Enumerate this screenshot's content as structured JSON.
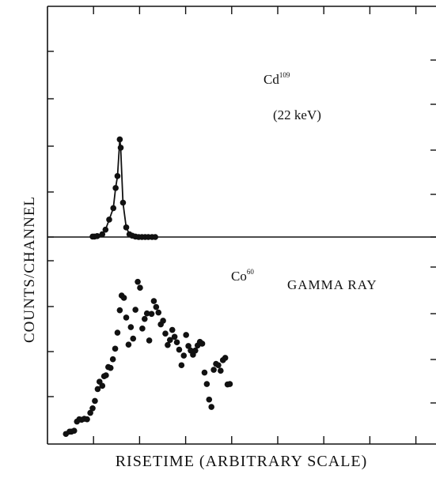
{
  "chart_data": {
    "type": "scatter",
    "title": "",
    "xlabel": "RISETIME (ARBITRARY SCALE)",
    "ylabel": "COUNTS/CHANNEL",
    "grid": false,
    "panels": [
      {
        "name": "Cd109",
        "annotation": {
          "isotope": "Cd",
          "mass": "109",
          "energy": "(22 keV)"
        },
        "has_fit_curve": true,
        "points": [
          {
            "x": 0.98,
            "y": 0.01
          },
          {
            "x": 1.02,
            "y": 0.01
          },
          {
            "x": 1.08,
            "y": 0.02
          },
          {
            "x": 1.19,
            "y": 0.06
          },
          {
            "x": 1.26,
            "y": 0.16
          },
          {
            "x": 1.34,
            "y": 0.38
          },
          {
            "x": 1.43,
            "y": 0.63
          },
          {
            "x": 1.48,
            "y": 1.07
          },
          {
            "x": 1.52,
            "y": 1.33
          },
          {
            "x": 1.57,
            "y": 2.13
          },
          {
            "x": 1.59,
            "y": 1.95
          },
          {
            "x": 1.64,
            "y": 0.75
          },
          {
            "x": 1.71,
            "y": 0.21
          },
          {
            "x": 1.78,
            "y": 0.06
          },
          {
            "x": 1.84,
            "y": 0.03
          },
          {
            "x": 1.91,
            "y": 0.01
          },
          {
            "x": 1.98,
            "y": 0.0
          },
          {
            "x": 2.05,
            "y": 0.0
          },
          {
            "x": 2.12,
            "y": 0.0
          },
          {
            "x": 2.19,
            "y": 0.0
          },
          {
            "x": 2.27,
            "y": 0.0
          },
          {
            "x": 2.34,
            "y": 0.0
          }
        ]
      },
      {
        "name": "Co60 gamma ray",
        "annotation": {
          "isotope": "Co",
          "mass": "60",
          "text": "GAMMA RAY"
        },
        "has_fit_curve": false,
        "points": [
          {
            "x": 0.4,
            "y": 0.22
          },
          {
            "x": 0.48,
            "y": 0.27
          },
          {
            "x": 0.52,
            "y": 0.27
          },
          {
            "x": 0.58,
            "y": 0.29
          },
          {
            "x": 0.64,
            "y": 0.49
          },
          {
            "x": 0.69,
            "y": 0.54
          },
          {
            "x": 0.74,
            "y": 0.53
          },
          {
            "x": 0.8,
            "y": 0.55
          },
          {
            "x": 0.86,
            "y": 0.54
          },
          {
            "x": 0.93,
            "y": 0.68
          },
          {
            "x": 0.98,
            "y": 0.78
          },
          {
            "x": 1.03,
            "y": 0.94
          },
          {
            "x": 1.09,
            "y": 1.2
          },
          {
            "x": 1.13,
            "y": 1.36
          },
          {
            "x": 1.19,
            "y": 1.27
          },
          {
            "x": 1.23,
            "y": 1.48
          },
          {
            "x": 1.27,
            "y": 1.5
          },
          {
            "x": 1.32,
            "y": 1.68
          },
          {
            "x": 1.37,
            "y": 1.66
          },
          {
            "x": 1.42,
            "y": 1.85
          },
          {
            "x": 1.47,
            "y": 2.08
          },
          {
            "x": 1.52,
            "y": 2.43
          },
          {
            "x": 1.57,
            "y": 2.92
          },
          {
            "x": 1.61,
            "y": 3.24
          },
          {
            "x": 1.66,
            "y": 3.19
          },
          {
            "x": 1.71,
            "y": 2.76
          },
          {
            "x": 1.76,
            "y": 2.17
          },
          {
            "x": 1.81,
            "y": 2.55
          },
          {
            "x": 1.86,
            "y": 2.3
          },
          {
            "x": 1.91,
            "y": 2.93
          },
          {
            "x": 1.96,
            "y": 3.54
          },
          {
            "x": 2.01,
            "y": 3.41
          },
          {
            "x": 2.06,
            "y": 2.52
          },
          {
            "x": 2.11,
            "y": 2.73
          },
          {
            "x": 2.16,
            "y": 2.85
          },
          {
            "x": 2.21,
            "y": 2.26
          },
          {
            "x": 2.26,
            "y": 2.84
          },
          {
            "x": 2.31,
            "y": 3.12
          },
          {
            "x": 2.36,
            "y": 2.99
          },
          {
            "x": 2.41,
            "y": 2.87
          },
          {
            "x": 2.46,
            "y": 2.61
          },
          {
            "x": 2.51,
            "y": 2.69
          },
          {
            "x": 2.56,
            "y": 2.41
          },
          {
            "x": 2.61,
            "y": 2.16
          },
          {
            "x": 2.66,
            "y": 2.27
          },
          {
            "x": 2.71,
            "y": 2.49
          },
          {
            "x": 2.76,
            "y": 2.34
          },
          {
            "x": 2.81,
            "y": 2.22
          },
          {
            "x": 2.86,
            "y": 2.06
          },
          {
            "x": 2.91,
            "y": 1.72
          },
          {
            "x": 2.96,
            "y": 1.93
          },
          {
            "x": 3.01,
            "y": 2.38
          },
          {
            "x": 3.06,
            "y": 2.14
          },
          {
            "x": 3.11,
            "y": 2.04
          },
          {
            "x": 3.16,
            "y": 1.95
          },
          {
            "x": 3.21,
            "y": 2.04
          },
          {
            "x": 3.26,
            "y": 2.15
          },
          {
            "x": 3.31,
            "y": 2.23
          },
          {
            "x": 3.36,
            "y": 2.19
          },
          {
            "x": 3.41,
            "y": 1.56
          },
          {
            "x": 3.46,
            "y": 1.31
          },
          {
            "x": 3.51,
            "y": 0.97
          },
          {
            "x": 3.56,
            "y": 0.81
          },
          {
            "x": 3.61,
            "y": 1.62
          },
          {
            "x": 3.66,
            "y": 1.75
          },
          {
            "x": 3.71,
            "y": 1.72
          },
          {
            "x": 3.76,
            "y": 1.6
          },
          {
            "x": 3.81,
            "y": 1.83
          },
          {
            "x": 3.86,
            "y": 1.88
          },
          {
            "x": 3.91,
            "y": 1.3
          },
          {
            "x": 3.96,
            "y": 1.31
          }
        ]
      }
    ]
  }
}
